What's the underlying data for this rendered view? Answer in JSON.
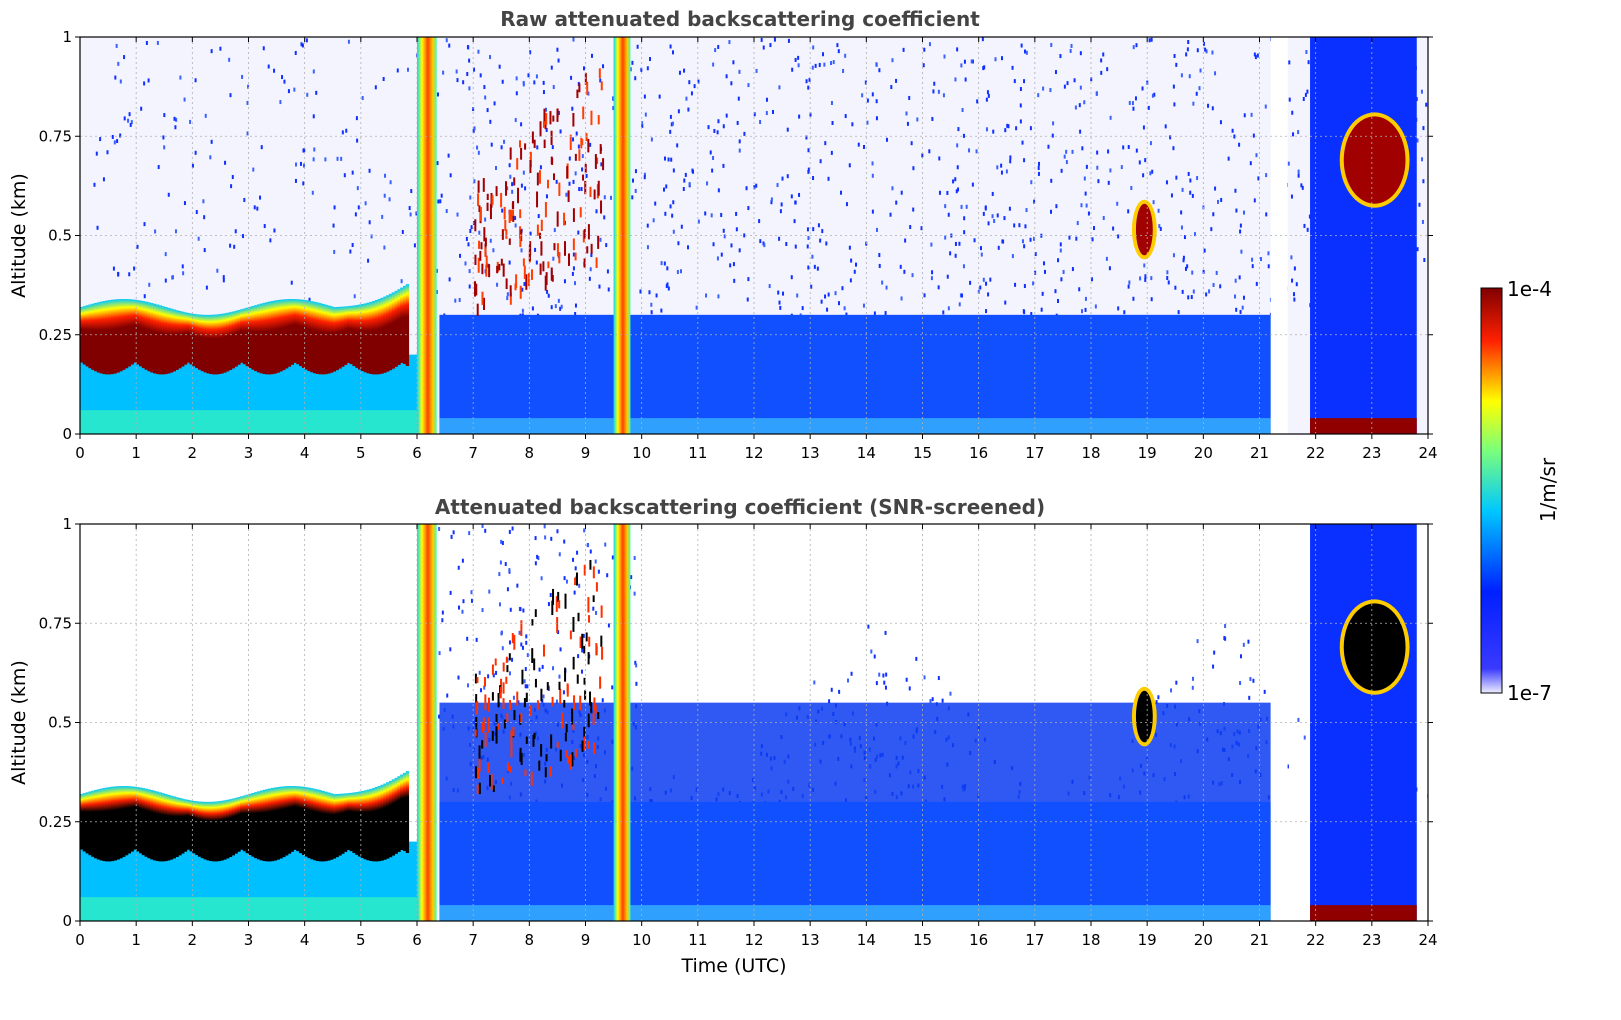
{
  "chart_data": [
    {
      "type": "heatmap",
      "title": "Raw attenuated backscattering coefficient",
      "xlabel": "",
      "ylabel": "Altitude (km)",
      "xlim": [
        0,
        24
      ],
      "ylim": [
        0,
        1
      ],
      "xticks": [
        "0",
        "1",
        "2",
        "3",
        "4",
        "5",
        "6",
        "7",
        "8",
        "9",
        "10",
        "11",
        "12",
        "13",
        "14",
        "15",
        "16",
        "17",
        "18",
        "19",
        "20",
        "21",
        "22",
        "23",
        "24"
      ],
      "yticks": [
        "0",
        "0.25",
        "0.5",
        "0.75",
        "1"
      ],
      "grid": true,
      "screened": false,
      "features": [
        {
          "kind": "cloud_layer",
          "t_start": 0.0,
          "t_end": 5.8,
          "altitude_km": [
            0.18,
            0.32
          ],
          "level": "max"
        },
        {
          "kind": "precipitation_band",
          "t_start": 6.0,
          "t_end": 6.35,
          "altitude_km": [
            0,
            1
          ]
        },
        {
          "kind": "precipitation_band",
          "t_start": 9.5,
          "t_end": 9.8,
          "altitude_km": [
            0,
            1
          ]
        },
        {
          "kind": "cloud_patches",
          "t_start": 7.0,
          "t_end": 9.3,
          "altitude_km": [
            0.3,
            0.95
          ]
        },
        {
          "kind": "cloud_patch",
          "t_start": 18.8,
          "t_end": 19.1,
          "altitude_km": [
            0.45,
            0.58
          ]
        },
        {
          "kind": "cloud_patch",
          "t_start": 22.5,
          "t_end": 23.6,
          "altitude_km": [
            0.58,
            0.8
          ]
        },
        {
          "kind": "data_gap",
          "t_start": 21.2,
          "t_end": 21.5
        }
      ]
    },
    {
      "type": "heatmap",
      "title": "Attenuated backscattering coefficient (SNR-screened)",
      "xlabel": "Time (UTC)",
      "ylabel": "Altitude (km)",
      "xlim": [
        0,
        24
      ],
      "ylim": [
        0,
        1
      ],
      "xticks": [
        "0",
        "1",
        "2",
        "3",
        "4",
        "5",
        "6",
        "7",
        "8",
        "9",
        "10",
        "11",
        "12",
        "13",
        "14",
        "15",
        "16",
        "17",
        "18",
        "19",
        "20",
        "21",
        "22",
        "23",
        "24"
      ],
      "yticks": [
        "0",
        "0.25",
        "0.5",
        "0.75",
        "1"
      ],
      "grid": true,
      "screened": true,
      "features": [
        {
          "kind": "cloud_layer",
          "t_start": 0.0,
          "t_end": 5.8,
          "altitude_km": [
            0.18,
            0.32
          ],
          "level": "saturated"
        },
        {
          "kind": "precipitation_band",
          "t_start": 6.0,
          "t_end": 6.35,
          "altitude_km": [
            0,
            1
          ]
        },
        {
          "kind": "precipitation_band",
          "t_start": 9.5,
          "t_end": 9.8,
          "altitude_km": [
            0,
            1
          ]
        },
        {
          "kind": "cloud_patches",
          "t_start": 7.0,
          "t_end": 9.3,
          "altitude_km": [
            0.3,
            0.95
          ]
        },
        {
          "kind": "cloud_patch",
          "t_start": 18.8,
          "t_end": 19.1,
          "altitude_km": [
            0.45,
            0.58
          ]
        },
        {
          "kind": "cloud_patch",
          "t_start": 22.5,
          "t_end": 23.6,
          "altitude_km": [
            0.58,
            0.8
          ]
        },
        {
          "kind": "data_gap",
          "t_start": 21.2,
          "t_end": 21.5
        }
      ]
    }
  ],
  "colorbar": {
    "label": "1/m/sr",
    "max_label": "1e-4",
    "min_label": "1e-7",
    "scale": "log",
    "colormap": "jet",
    "colors": [
      "#eeeeff",
      "#0000ff",
      "#00c8ff",
      "#ffff00",
      "#ff0000",
      "#800000"
    ]
  }
}
